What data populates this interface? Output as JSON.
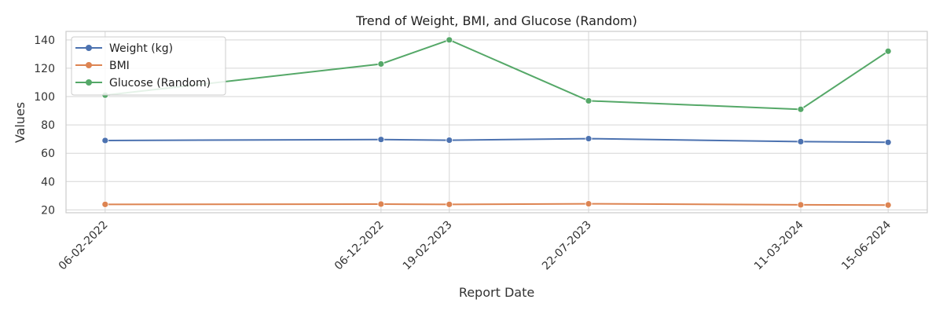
{
  "chart_data": {
    "type": "line",
    "title": "Trend of Weight, BMI, and Glucose (Random)",
    "xlabel": "Report Date",
    "ylabel": "Values",
    "x": [
      "06-02-2022",
      "06-12-2022",
      "19-02-2023",
      "22-07-2023",
      "11-03-2024",
      "15-06-2024"
    ],
    "x_dates": [
      "2022-02-06",
      "2022-12-06",
      "2023-02-19",
      "2023-07-22",
      "2024-03-11",
      "2024-06-15"
    ],
    "yticks": [
      20,
      40,
      60,
      80,
      100,
      120,
      140
    ],
    "ylim": [
      18,
      146
    ],
    "grid": true,
    "legend_position": "upper-left",
    "series": [
      {
        "name": "Weight (kg)",
        "color": "#4c72b0",
        "marker": "circle",
        "values": [
          69,
          69.7,
          69.2,
          70.3,
          68.2,
          67.7
        ]
      },
      {
        "name": "BMI",
        "color": "#dd8452",
        "marker": "circle",
        "values": [
          23.9,
          24.1,
          23.9,
          24.3,
          23.6,
          23.4
        ]
      },
      {
        "name": "Glucose (Random)",
        "color": "#55a868",
        "marker": "circle",
        "values": [
          101,
          123,
          140,
          97,
          91,
          132
        ]
      }
    ]
  }
}
